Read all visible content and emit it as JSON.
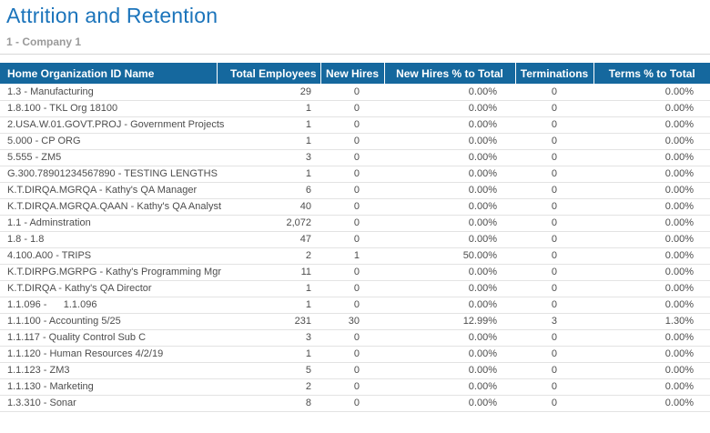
{
  "page": {
    "title": "Attrition and Retention",
    "subtitle": "1 - Company 1"
  },
  "colors": {
    "title": "#1B74BB",
    "subtitle": "#9A9A9A",
    "header_bg": "#15689E",
    "header_text": "#FFFFFF",
    "body_text": "#4D4D4D",
    "row_border": "#E3E3E3"
  },
  "table": {
    "columns": [
      {
        "label": "Home Organization ID Name"
      },
      {
        "label": "Total Employees"
      },
      {
        "label": "New Hires"
      },
      {
        "label": "New Hires % to Total"
      },
      {
        "label": "Terminations"
      },
      {
        "label": "Terms % to Total"
      }
    ],
    "rows": [
      [
        "1.3 - Manufacturing",
        "29",
        "0",
        "0.00%",
        "0",
        "0.00%"
      ],
      [
        "1.8.100 - TKL Org 18100",
        "1",
        "0",
        "0.00%",
        "0",
        "0.00%"
      ],
      [
        "2.USA.W.01.GOVT.PROJ - Government Projects",
        "1",
        "0",
        "0.00%",
        "0",
        "0.00%"
      ],
      [
        "5.000 - CP ORG",
        "1",
        "0",
        "0.00%",
        "0",
        "0.00%"
      ],
      [
        "5.555 - ZM5",
        "3",
        "0",
        "0.00%",
        "0",
        "0.00%"
      ],
      [
        "G.300.78901234567890 - TESTING LENGTHS",
        "1",
        "0",
        "0.00%",
        "0",
        "0.00%"
      ],
      [
        "K.T.DIRQA.MGRQA - Kathy's QA Manager",
        "6",
        "0",
        "0.00%",
        "0",
        "0.00%"
      ],
      [
        "K.T.DIRQA.MGRQA.QAAN - Kathy's QA Analyst",
        "40",
        "0",
        "0.00%",
        "0",
        "0.00%"
      ],
      [
        "1.1 - Adminstration",
        "2,072",
        "0",
        "0.00%",
        "0",
        "0.00%"
      ],
      [
        "1.8 - 1.8",
        "47",
        "0",
        "0.00%",
        "0",
        "0.00%"
      ],
      [
        "4.100.A00 - TRIPS",
        "2",
        "1",
        "50.00%",
        "0",
        "0.00%"
      ],
      [
        "K.T.DIRPG.MGRPG - Kathy's Programming Mgr",
        "11",
        "0",
        "0.00%",
        "0",
        "0.00%"
      ],
      [
        "K.T.DIRQA - Kathy's QA Director",
        "1",
        "0",
        "0.00%",
        "0",
        "0.00%"
      ],
      [
        "1.1.096 -      1.1.096",
        "1",
        "0",
        "0.00%",
        "0",
        "0.00%"
      ],
      [
        "1.1.100 - Accounting 5/25",
        "231",
        "30",
        "12.99%",
        "3",
        "1.30%"
      ],
      [
        "1.1.117 - Quality Control Sub C",
        "3",
        "0",
        "0.00%",
        "0",
        "0.00%"
      ],
      [
        "1.1.120 - Human Resources 4/2/19",
        "1",
        "0",
        "0.00%",
        "0",
        "0.00%"
      ],
      [
        "1.1.123 - ZM3",
        "5",
        "0",
        "0.00%",
        "0",
        "0.00%"
      ],
      [
        "1.1.130 - Marketing",
        "2",
        "0",
        "0.00%",
        "0",
        "0.00%"
      ],
      [
        "1.3.310 - Sonar",
        "8",
        "0",
        "0.00%",
        "0",
        "0.00%"
      ]
    ]
  }
}
